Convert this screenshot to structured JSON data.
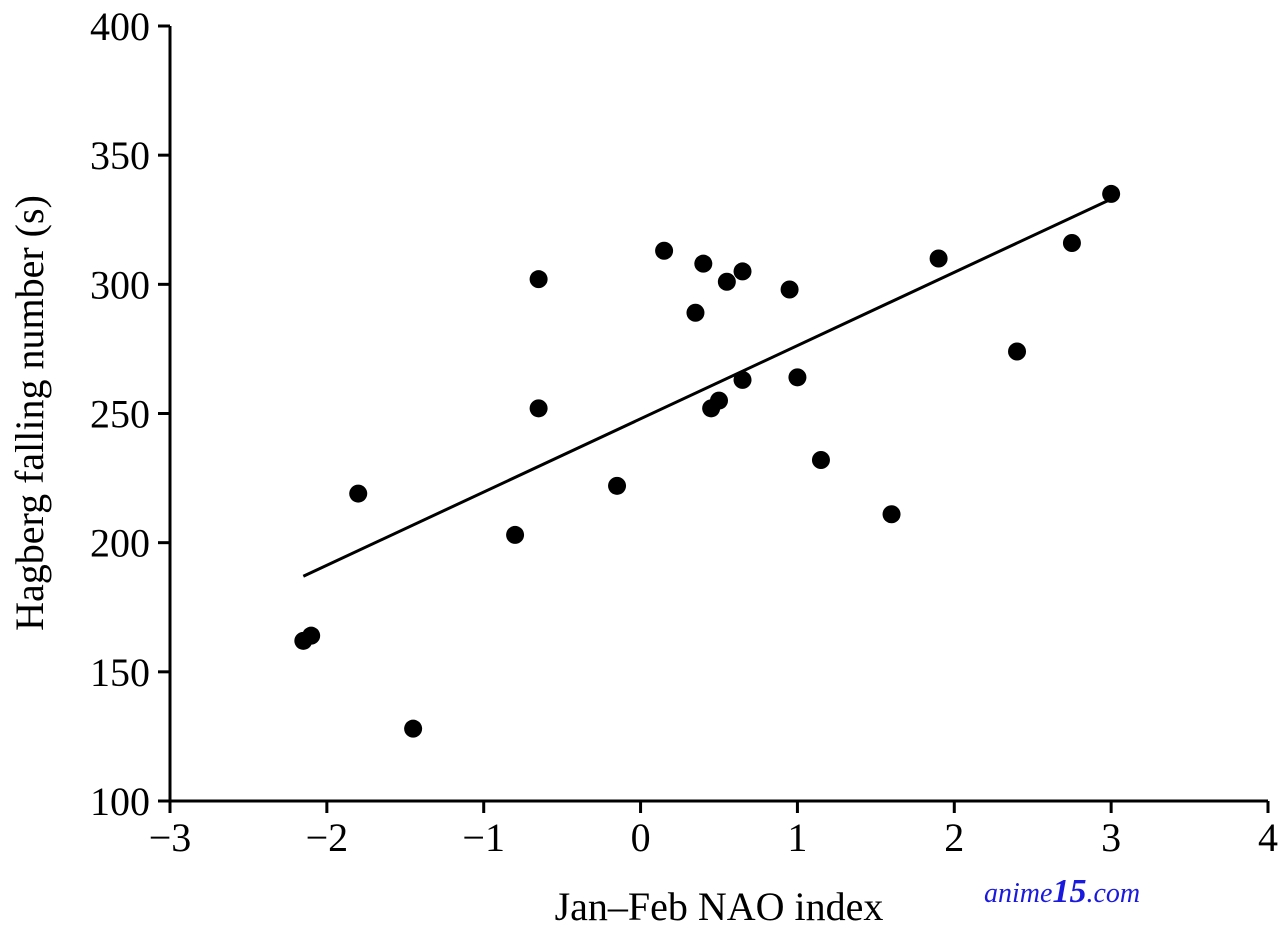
{
  "chart_data": {
    "type": "scatter",
    "title": "",
    "xlabel": "Jan–Feb NAO index",
    "ylabel": "Hagberg falling number (s)",
    "xlim": [
      -3,
      4
    ],
    "ylim": [
      100,
      400
    ],
    "xticks": [
      -3,
      -2,
      -1,
      0,
      1,
      2,
      3,
      4
    ],
    "xtick_labels": [
      "−3",
      "−2",
      "−1",
      "0",
      "1",
      "2",
      "3",
      "4"
    ],
    "yticks": [
      100,
      150,
      200,
      250,
      300,
      350,
      400
    ],
    "ytick_labels": [
      "100",
      "150",
      "200",
      "250",
      "300",
      "350",
      "400"
    ],
    "grid": false,
    "points": [
      {
        "x": -2.15,
        "y": 162
      },
      {
        "x": -2.1,
        "y": 164
      },
      {
        "x": -1.8,
        "y": 219
      },
      {
        "x": -1.45,
        "y": 128
      },
      {
        "x": -0.8,
        "y": 203
      },
      {
        "x": -0.65,
        "y": 302
      },
      {
        "x": -0.65,
        "y": 252
      },
      {
        "x": -0.15,
        "y": 222
      },
      {
        "x": 0.15,
        "y": 313
      },
      {
        "x": 0.35,
        "y": 289
      },
      {
        "x": 0.4,
        "y": 308
      },
      {
        "x": 0.45,
        "y": 252
      },
      {
        "x": 0.5,
        "y": 255
      },
      {
        "x": 0.55,
        "y": 301
      },
      {
        "x": 0.65,
        "y": 305
      },
      {
        "x": 0.65,
        "y": 263
      },
      {
        "x": 0.95,
        "y": 298
      },
      {
        "x": 1.0,
        "y": 264
      },
      {
        "x": 1.15,
        "y": 232
      },
      {
        "x": 1.6,
        "y": 211
      },
      {
        "x": 1.9,
        "y": 310
      },
      {
        "x": 2.4,
        "y": 274
      },
      {
        "x": 2.75,
        "y": 316
      },
      {
        "x": 3.0,
        "y": 335
      }
    ],
    "trendline": {
      "x": [
        -2.15,
        3.0
      ],
      "y": [
        187,
        333
      ]
    },
    "colors": {
      "points": "#000000",
      "trendline": "#000000",
      "axes": "#000000"
    }
  },
  "watermark": {
    "text_prefix": "anime",
    "text_number": "15",
    "text_suffix": ".com",
    "color": "#1a1adf"
  }
}
